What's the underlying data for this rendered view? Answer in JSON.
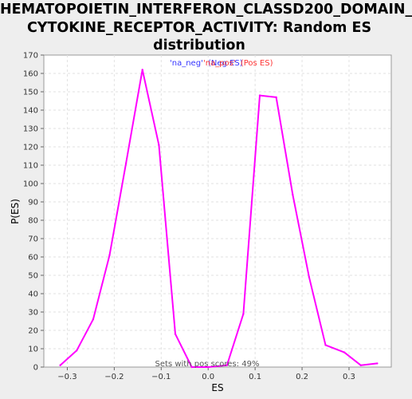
{
  "chart_data": {
    "type": "line",
    "title_lines": [
      "HEMATOPOIETIN_INTERFERON_CLASSD200_DOMAIN_",
      "CYTOKINE_RECEPTOR_ACTIVITY: Random ES",
      "distribution"
    ],
    "xlabel": "ES",
    "ylabel": "P(ES)",
    "xlim": [
      -0.35,
      0.39
    ],
    "ylim": [
      0,
      170
    ],
    "x_ticks": [
      -0.3,
      -0.2,
      -0.1,
      0.0,
      0.1,
      0.2,
      0.3
    ],
    "x_tick_labels": [
      "−0.3",
      "−0.2",
      "−0.1",
      "0.0",
      "0.1",
      "0.2",
      "0.3"
    ],
    "y_ticks": [
      0,
      10,
      20,
      30,
      40,
      50,
      60,
      70,
      80,
      90,
      100,
      110,
      120,
      130,
      140,
      150,
      160,
      170
    ],
    "grid": true,
    "legend": {
      "placement": "top-center",
      "entries": [
        {
          "label": "'na_neg'",
          "color": "#3333ff"
        },
        {
          "label": "(Neg ES)",
          "color": "#3333ff"
        },
        {
          "label": "'na_pos'",
          "color": "#ff3333"
        },
        {
          "label": "(Pos ES)",
          "color": "#ff3333"
        }
      ]
    },
    "annotation": "Sets with pos scores: 49%",
    "series": [
      {
        "color": "#ff00ff",
        "x": [
          -0.315,
          -0.28,
          -0.245,
          -0.21,
          -0.175,
          -0.14,
          -0.105,
          -0.07,
          -0.035,
          0.0,
          0.04,
          0.075,
          0.11,
          0.145,
          0.18,
          0.215,
          0.25,
          0.29,
          0.325,
          0.36
        ],
        "y": [
          1,
          9,
          26,
          61,
          111,
          162,
          121,
          18,
          0,
          0,
          1,
          29,
          148,
          147,
          94,
          49,
          12,
          8,
          1,
          2
        ]
      }
    ]
  }
}
